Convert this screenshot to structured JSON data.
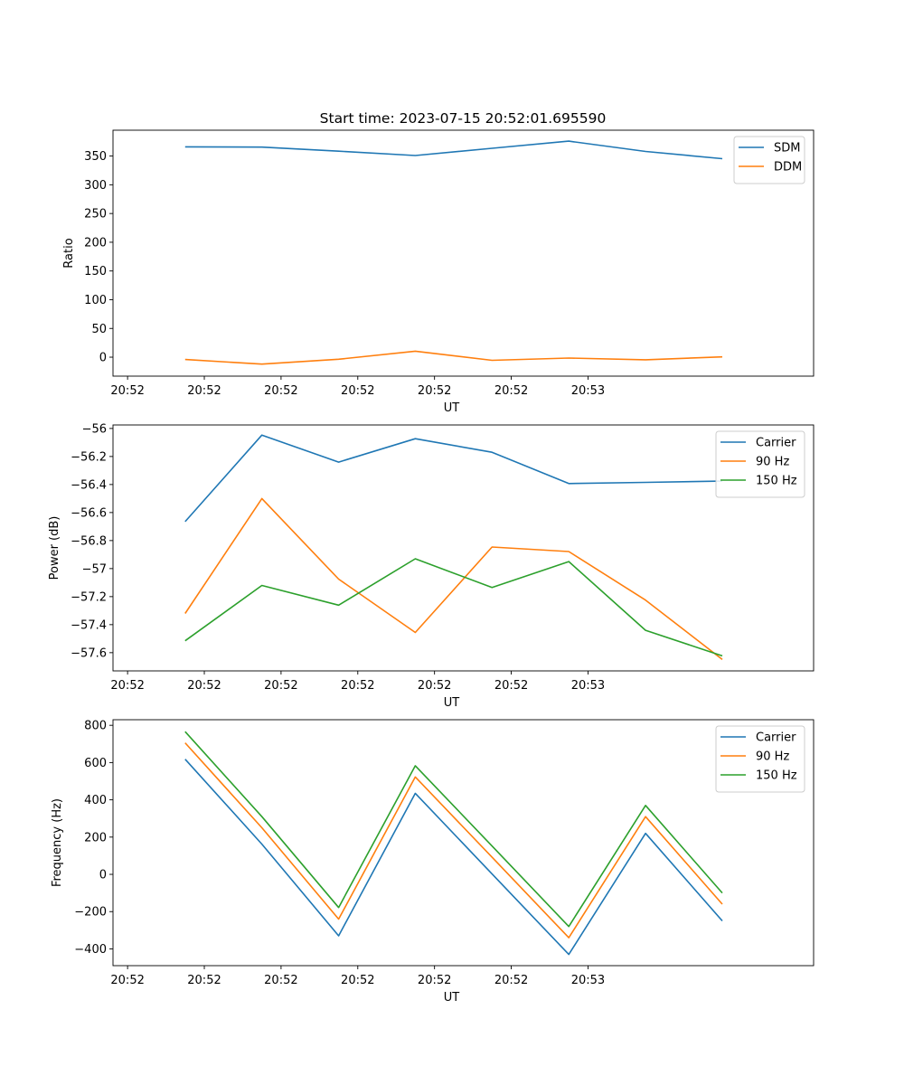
{
  "figure_title": "Start time: 2023-07-15 20:52:01.695590",
  "colors": {
    "blue": "#1f77b4",
    "orange": "#ff7f0e",
    "green": "#2ca02c"
  },
  "chart_data": [
    {
      "type": "line",
      "title": "Start time: 2023-07-15 20:52:01.695590",
      "xlabel": "UT",
      "ylabel": "Ratio",
      "x_tick_labels": [
        "20:52",
        "20:52",
        "20:52",
        "20:52",
        "20:52",
        "20:52",
        "20:53"
      ],
      "x_index_range": [
        -0.19,
        8.94
      ],
      "xlim_index": [
        -0.19,
        8.94
      ],
      "ylim": [
        -33,
        395
      ],
      "yticks": [
        0,
        50,
        100,
        150,
        200,
        250,
        300,
        350
      ],
      "x": [
        0.75,
        1.75,
        2.75,
        3.75,
        4.75,
        5.75,
        6.75,
        7.75
      ],
      "legend": "upper right",
      "series": [
        {
          "name": "SDM",
          "color": "#1f77b4",
          "values": [
            366,
            365.5,
            358.5,
            351,
            363.5,
            376,
            358,
            345.5
          ]
        },
        {
          "name": "DDM",
          "color": "#ff7f0e",
          "values": [
            -4,
            -12,
            -3.5,
            10.5,
            -5.5,
            -1.5,
            -4.5,
            0.5
          ]
        }
      ]
    },
    {
      "type": "line",
      "title": "",
      "xlabel": "UT",
      "ylabel": "Power (dB)",
      "x_tick_labels": [
        "20:52",
        "20:52",
        "20:52",
        "20:52",
        "20:52",
        "20:52",
        "20:53"
      ],
      "xlim_index": [
        -0.19,
        8.94
      ],
      "ylim": [
        -57.73,
        -55.975
      ],
      "yticks": [
        -57.6,
        -57.4,
        -57.2,
        -57.0,
        -56.8,
        -56.6,
        -56.4,
        -56.2,
        -56.0
      ],
      "x": [
        0.75,
        1.75,
        2.75,
        3.75,
        4.75,
        5.75,
        6.75,
        7.75
      ],
      "legend": "upper right",
      "series": [
        {
          "name": "Carrier",
          "color": "#1f77b4",
          "values": [
            -56.665,
            -56.047,
            -56.24,
            -56.073,
            -56.17,
            -56.393,
            -56.385,
            -56.376
          ]
        },
        {
          "name": "90 Hz",
          "color": "#ff7f0e",
          "values": [
            -57.32,
            -56.5,
            -57.075,
            -57.456,
            -56.846,
            -56.878,
            -57.225,
            -57.649
          ]
        },
        {
          "name": "150 Hz",
          "color": "#2ca02c",
          "values": [
            -57.515,
            -57.12,
            -57.261,
            -56.93,
            -57.135,
            -56.95,
            -57.44,
            -57.623
          ]
        }
      ]
    },
    {
      "type": "line",
      "title": "",
      "xlabel": "UT",
      "ylabel": "Frequency (Hz)",
      "x_tick_labels": [
        "20:52",
        "20:52",
        "20:52",
        "20:52",
        "20:52",
        "20:52",
        "20:53"
      ],
      "xlim_index": [
        -0.19,
        8.94
      ],
      "ylim": [
        -490,
        830
      ],
      "yticks": [
        -400,
        -200,
        0,
        200,
        400,
        600,
        800
      ],
      "x": [
        0.75,
        1.75,
        2.75,
        3.75,
        4.75,
        5.75,
        6.75,
        7.75
      ],
      "legend": "upper right",
      "series": [
        {
          "name": "Carrier",
          "color": "#1f77b4",
          "values": [
            618,
            162,
            -330,
            435,
            2,
            -430,
            220,
            -250
          ]
        },
        {
          "name": "90 Hz",
          "color": "#ff7f0e",
          "values": [
            706,
            250,
            -240,
            523,
            92,
            -340,
            310,
            -160
          ]
        },
        {
          "name": "150 Hz",
          "color": "#2ca02c",
          "values": [
            766,
            310,
            -178,
            583,
            152,
            -280,
            370,
            -100
          ]
        }
      ]
    }
  ]
}
